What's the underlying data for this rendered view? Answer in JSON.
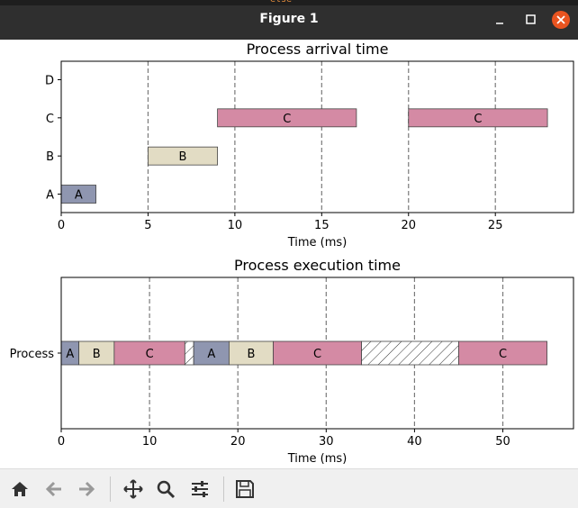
{
  "window": {
    "title": "Figure 1"
  },
  "titlebar": {
    "code_fragment": "else"
  },
  "toolbar": {
    "buttons": [
      "home-icon",
      "back-arrow-icon",
      "forward-arrow-icon",
      "pan-icon",
      "zoom-icon",
      "configure-subplots-icon",
      "save-icon"
    ]
  },
  "colors": {
    "A": "#8f96b0",
    "B": "#e2dcc4",
    "C": "#d48aa4",
    "idle_fill": "#ffffff",
    "grid": "#7a7a7a",
    "close_button": "#e95420"
  },
  "chart_data": [
    {
      "type": "gantt",
      "title": "Process arrival time",
      "xlabel": "Time (ms)",
      "ylabel": "",
      "xlim": [
        0,
        29.5
      ],
      "xticks": [
        0,
        5,
        10,
        15,
        20,
        25
      ],
      "yticks": [
        "A",
        "B",
        "C",
        "D"
      ],
      "grid": "vertical dashed",
      "bars": [
        {
          "row": "A",
          "label": "A",
          "start": 0,
          "end": 2
        },
        {
          "row": "B",
          "label": "B",
          "start": 5,
          "end": 9
        },
        {
          "row": "C",
          "label": "C",
          "start": 9,
          "end": 17
        },
        {
          "row": "C",
          "label": "C",
          "start": 20,
          "end": 28
        }
      ]
    },
    {
      "type": "gantt",
      "title": "Process execution time",
      "xlabel": "Time (ms)",
      "ylabel": "",
      "xlim": [
        0,
        58
      ],
      "xticks": [
        0,
        10,
        20,
        30,
        40,
        50
      ],
      "yticks": [
        "Process"
      ],
      "grid": "vertical dashed",
      "bars": [
        {
          "row": "Process",
          "label": "A",
          "start": 0,
          "end": 2
        },
        {
          "row": "Process",
          "label": "B",
          "start": 2,
          "end": 6
        },
        {
          "row": "Process",
          "label": "C",
          "start": 6,
          "end": 14
        },
        {
          "row": "Process",
          "label": "",
          "start": 14,
          "end": 15,
          "idle": true
        },
        {
          "row": "Process",
          "label": "A",
          "start": 15,
          "end": 19
        },
        {
          "row": "Process",
          "label": "B",
          "start": 19,
          "end": 24
        },
        {
          "row": "Process",
          "label": "C",
          "start": 24,
          "end": 34
        },
        {
          "row": "Process",
          "label": "",
          "start": 34,
          "end": 45,
          "idle": true
        },
        {
          "row": "Process",
          "label": "C",
          "start": 45,
          "end": 55
        }
      ]
    }
  ]
}
